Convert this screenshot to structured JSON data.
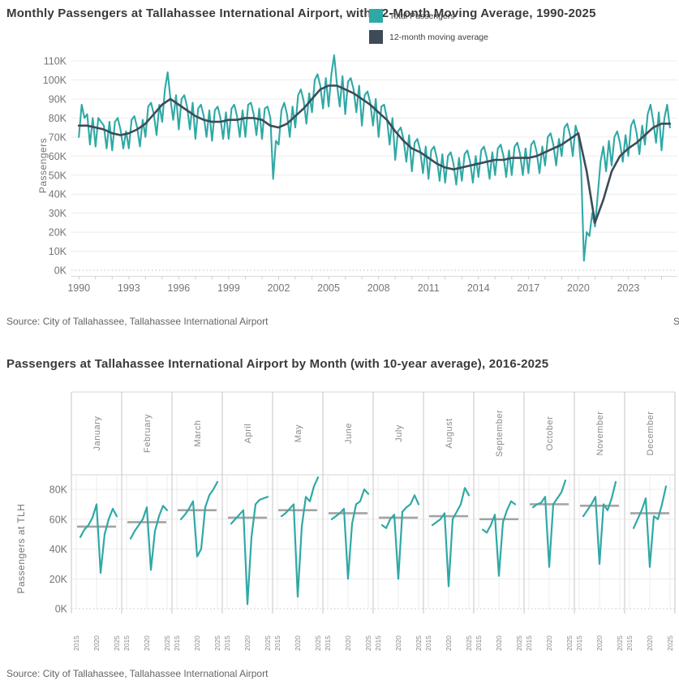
{
  "sources": {
    "top": "Source: City of Tallahassee, Tallahassee International Airport",
    "bottom": "Source: City of Tallahassee, Tallahassee International Airport",
    "clipped_right": "S"
  },
  "colors": {
    "total_line": "#2FA9A5",
    "moving_avg_line": "#3E4A57",
    "panel_avg_line": "#a3a3a3",
    "grid": "#ececec",
    "zero_grid": "#c2c2c2",
    "separator": "#c6c6c6",
    "band_border": "#d5d5d5",
    "axis": "#d9d9d9",
    "tick": "#cfcfcf"
  },
  "chart_data": [
    {
      "id": "monthly-passengers-1990-2025",
      "type": "line",
      "title": "Monthly Passengers at Tallahassee International Airport, with 12-Month Moving Average, 1990-2025",
      "xlabel": "",
      "ylabel": "Passengers",
      "grid": "horizontal",
      "legend_position": "top-right-overlapping-title",
      "x_ticks": [
        1990,
        1993,
        1996,
        1999,
        2002,
        2005,
        2008,
        2011,
        2014,
        2017,
        2020,
        2023
      ],
      "y_ticks_k": [
        0,
        10,
        20,
        30,
        40,
        50,
        60,
        70,
        80,
        90,
        100,
        110
      ],
      "ylim_k": [
        0,
        113
      ],
      "xlim": [
        1989.55,
        2025.9
      ],
      "series": [
        {
          "name": "Total Passengers",
          "color": "#2FA9A5",
          "x_start": 1990.0,
          "x_step": 0.16667,
          "values_k": [
            70,
            87,
            80,
            82,
            66,
            80,
            65,
            80,
            78,
            76,
            64,
            78,
            63,
            78,
            80,
            74,
            64,
            73,
            64,
            79,
            81,
            75,
            65,
            79,
            70,
            86,
            88,
            82,
            71,
            87,
            78,
            95,
            104,
            90,
            79,
            92,
            74,
            90,
            92,
            86,
            74,
            88,
            69,
            85,
            87,
            81,
            70,
            84,
            68,
            84,
            86,
            80,
            69,
            83,
            69,
            85,
            87,
            81,
            70,
            84,
            70,
            87,
            88,
            82,
            71,
            85,
            69,
            85,
            86,
            80,
            48,
            68,
            66,
            84,
            88,
            82,
            70,
            86,
            75,
            92,
            95,
            89,
            77,
            93,
            83,
            100,
            103,
            97,
            85,
            101,
            86,
            103,
            113,
            98,
            86,
            102,
            82,
            99,
            101,
            95,
            83,
            97,
            76,
            92,
            94,
            88,
            76,
            90,
            70,
            86,
            87,
            80,
            66,
            80,
            58,
            73,
            75,
            69,
            57,
            71,
            52,
            67,
            69,
            63,
            51,
            65,
            48,
            63,
            65,
            59,
            47,
            61,
            46,
            60,
            62,
            56,
            45,
            59,
            47,
            61,
            63,
            57,
            46,
            60,
            49,
            63,
            65,
            59,
            48,
            62,
            50,
            64,
            66,
            60,
            49,
            63,
            50,
            65,
            67,
            61,
            50,
            64,
            51,
            66,
            68,
            62,
            51,
            65,
            55,
            70,
            72,
            66,
            55,
            69,
            60,
            75,
            77,
            71,
            60,
            76,
            71,
            55,
            5,
            20,
            18,
            30,
            23,
            40,
            57,
            65,
            52,
            68,
            55,
            70,
            73,
            67,
            57,
            71,
            60,
            76,
            79,
            72,
            61,
            76,
            66,
            82,
            87,
            78,
            67,
            83,
            63,
            80,
            87,
            75
          ]
        },
        {
          "name": "12-month moving average",
          "color": "#3E4A57",
          "x_start": 1990.0,
          "x_step": 0.5,
          "values_k": [
            76,
            76,
            75,
            74,
            72,
            71,
            72,
            74,
            77,
            82,
            87,
            90,
            87,
            84,
            81,
            79,
            78,
            78,
            79,
            79,
            80,
            80,
            79,
            76,
            75,
            77,
            81,
            85,
            90,
            95,
            97,
            97,
            95,
            93,
            90,
            87,
            83,
            79,
            73,
            68,
            64,
            62,
            59,
            56,
            54,
            53,
            54,
            55,
            56,
            57,
            58,
            58,
            59,
            59,
            59,
            60,
            62,
            64,
            66,
            69,
            72,
            52,
            25,
            37,
            52,
            60,
            64,
            67,
            71,
            75,
            77,
            77
          ]
        }
      ]
    },
    {
      "id": "passengers-by-month-small-multiples",
      "type": "line-small-multiples",
      "title": "Passengers at Tallahassee International Airport by Month (with 10-year average),  2016-2025",
      "xlabel": "",
      "ylabel": "Passengers at TLH",
      "grid": "both-light",
      "x_ticks": [
        2015,
        2020,
        2025
      ],
      "y_ticks_k": [
        0,
        20,
        40,
        60,
        80
      ],
      "ylim_k": [
        0,
        90
      ],
      "panels": [
        {
          "month": "January",
          "avg_k": 55,
          "x_start": 2016,
          "values_k": [
            48,
            53,
            56,
            61,
            70,
            24,
            50,
            60,
            67,
            62
          ]
        },
        {
          "month": "February",
          "avg_k": 58,
          "x_start": 2016,
          "values_k": [
            47,
            52,
            56,
            60,
            68,
            26,
            52,
            62,
            69,
            66
          ]
        },
        {
          "month": "March",
          "avg_k": 66,
          "x_start": 2016,
          "values_k": [
            60,
            63,
            67,
            72,
            35,
            40,
            68,
            76,
            80,
            85
          ]
        },
        {
          "month": "April",
          "avg_k": 61,
          "x_start": 2016,
          "values_k": [
            57,
            60,
            63,
            66,
            3,
            48,
            70,
            73,
            74,
            75
          ]
        },
        {
          "month": "May",
          "avg_k": 66,
          "x_start": 2016,
          "values_k": [
            62,
            64,
            67,
            70,
            8,
            55,
            75,
            72,
            82,
            88
          ]
        },
        {
          "month": "June",
          "avg_k": 64,
          "x_start": 2016,
          "values_k": [
            60,
            62,
            64,
            67,
            20,
            57,
            70,
            72,
            80,
            77
          ]
        },
        {
          "month": "July",
          "avg_k": 61,
          "x_start": 2016,
          "values_k": [
            56,
            54,
            60,
            63,
            20,
            65,
            68,
            70,
            76,
            70
          ]
        },
        {
          "month": "August",
          "avg_k": 62,
          "x_start": 2016,
          "values_k": [
            56,
            58,
            60,
            64,
            15,
            60,
            65,
            70,
            81,
            76
          ]
        },
        {
          "month": "September",
          "avg_k": 60,
          "x_start": 2016,
          "values_k": [
            53,
            51,
            56,
            63,
            22,
            58,
            66,
            72,
            70
          ]
        },
        {
          "month": "October",
          "avg_k": 70,
          "x_start": 2016,
          "values_k": [
            68,
            70,
            71,
            75,
            28,
            70,
            74,
            78,
            86
          ]
        },
        {
          "month": "November",
          "avg_k": 69,
          "x_start": 2016,
          "values_k": [
            62,
            66,
            70,
            75,
            30,
            70,
            66,
            74,
            85
          ]
        },
        {
          "month": "December",
          "avg_k": 64,
          "x_start": 2016,
          "values_k": [
            54,
            60,
            66,
            74,
            28,
            62,
            60,
            70,
            82
          ]
        }
      ]
    }
  ]
}
